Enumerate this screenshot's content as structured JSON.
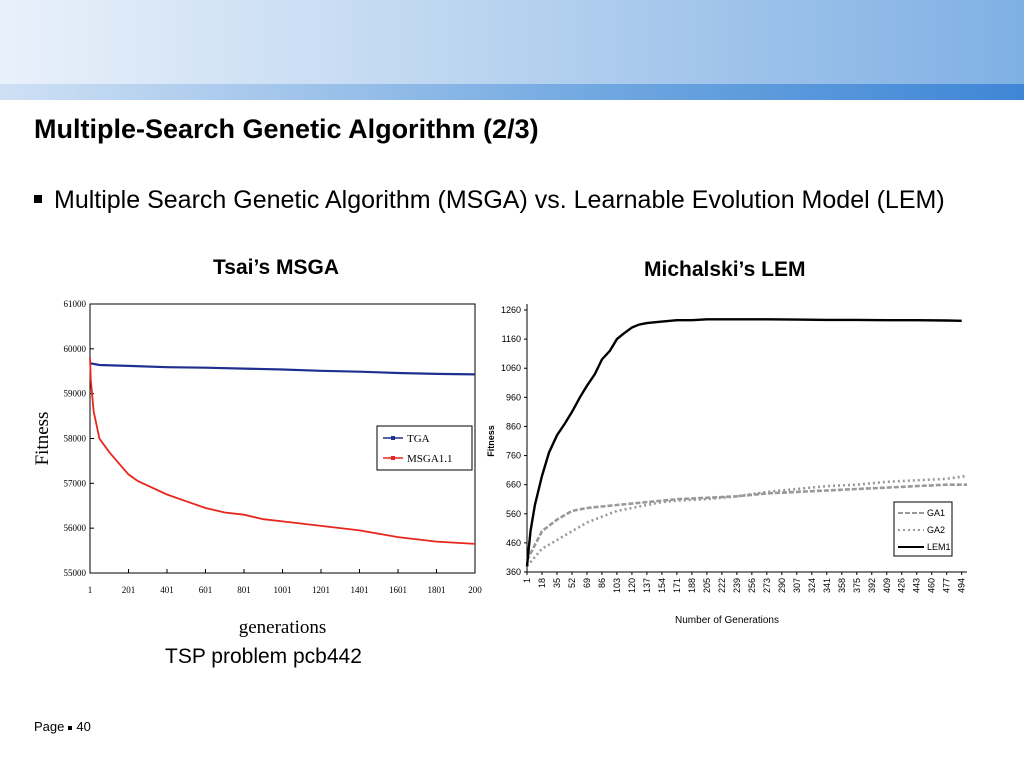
{
  "slide": {
    "title": "Multiple-Search Genetic Algorithm (2/3)",
    "bullet": "Multiple Search Genetic Algorithm (MSGA) vs. Learnable Evolution Model (LEM)",
    "left_caption": "Tsai’s MSGA",
    "right_caption": "Michalski’s LEM",
    "left_subcaption": "TSP problem pcb442",
    "footer": {
      "label": "Page",
      "number": "40"
    }
  },
  "colors": {
    "tga": "#1f2f8f",
    "msga": "#e8261c",
    "lem": "#000000",
    "ga": "#999999"
  },
  "chart_data": [
    {
      "type": "line",
      "ylabel": "Fitness",
      "xlabel": "generations",
      "ylim": [
        55000,
        61000
      ],
      "xlim": [
        1,
        2001
      ],
      "xticks": [
        "1",
        "201",
        "401",
        "601",
        "801",
        "1001",
        "1201",
        "1401",
        "1601",
        "1801",
        "200"
      ],
      "yticks": [
        "55000",
        "56000",
        "57000",
        "58000",
        "59000",
        "60000",
        "61000"
      ],
      "legend_position": "center-right",
      "series": [
        {
          "name": "TGA",
          "x": [
            1,
            50,
            201,
            401,
            601,
            801,
            1001,
            1201,
            1401,
            1601,
            1801,
            2001
          ],
          "y": [
            59680,
            59640,
            59620,
            59590,
            59580,
            59560,
            59540,
            59510,
            59490,
            59460,
            59440,
            59430
          ]
        },
        {
          "name": "MSGA1.1",
          "x": [
            1,
            5,
            20,
            50,
            100,
            150,
            201,
            250,
            300,
            401,
            501,
            601,
            701,
            801,
            901,
            1001,
            1201,
            1401,
            1601,
            1801,
            2001
          ],
          "y": [
            59800,
            59300,
            58600,
            58000,
            57700,
            57450,
            57200,
            57050,
            56950,
            56750,
            56600,
            56450,
            56350,
            56300,
            56200,
            56150,
            56050,
            55950,
            55800,
            55700,
            55650
          ]
        }
      ]
    },
    {
      "type": "line",
      "ylabel": "Fitness",
      "xlabel": "Number of Generations",
      "ylim": [
        360,
        1260
      ],
      "xlim": [
        1,
        500
      ],
      "yticks": [
        "1260",
        "1160",
        "1060",
        "960",
        "860",
        "760",
        "660",
        "560",
        "460",
        "360"
      ],
      "xticks": [
        "1",
        "18",
        "35",
        "52",
        "69",
        "86",
        "103",
        "120",
        "137",
        "154",
        "171",
        "188",
        "205",
        "222",
        "239",
        "256",
        "273",
        "290",
        "307",
        "324",
        "341",
        "358",
        "375",
        "392",
        "409",
        "426",
        "443",
        "460",
        "477",
        "494"
      ],
      "legend_position": "bottom-right",
      "series": [
        {
          "name": "GA1",
          "x": [
            1,
            18,
            35,
            52,
            69,
            86,
            103,
            120,
            137,
            154,
            171,
            205,
            239,
            273,
            307,
            341,
            375,
            409,
            443,
            477,
            500
          ],
          "y": [
            400,
            500,
            540,
            570,
            580,
            585,
            590,
            595,
            600,
            605,
            610,
            615,
            620,
            630,
            635,
            640,
            645,
            650,
            655,
            660,
            660
          ]
        },
        {
          "name": "GA2",
          "x": [
            1,
            18,
            35,
            52,
            69,
            86,
            103,
            120,
            137,
            154,
            171,
            205,
            239,
            273,
            307,
            341,
            375,
            409,
            443,
            477,
            500
          ],
          "y": [
            380,
            440,
            470,
            500,
            530,
            550,
            570,
            580,
            590,
            600,
            605,
            610,
            620,
            635,
            645,
            655,
            660,
            670,
            675,
            680,
            690
          ]
        },
        {
          "name": "LEM1",
          "x": [
            1,
            5,
            10,
            18,
            26,
            35,
            44,
            52,
            61,
            69,
            78,
            86,
            95,
            103,
            111,
            120,
            128,
            137,
            154,
            171,
            188,
            205,
            239,
            273,
            307,
            341,
            375,
            409,
            443,
            477,
            494
          ],
          "y": [
            380,
            500,
            590,
            690,
            770,
            830,
            870,
            910,
            960,
            1000,
            1040,
            1090,
            1120,
            1160,
            1180,
            1200,
            1210,
            1215,
            1220,
            1225,
            1225,
            1228,
            1228,
            1228,
            1227,
            1226,
            1226,
            1225,
            1225,
            1224,
            1223
          ]
        }
      ]
    }
  ]
}
